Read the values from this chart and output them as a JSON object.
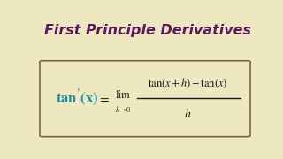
{
  "title": "First Principle Derivatives",
  "title_color": "#5C1A5C",
  "title_fontsize": 11.5,
  "bg_color": "#EDE8C0",
  "box_bg": "#EDE8C0",
  "box_edge_color": "#7A6050",
  "formula_lhs_color": "#1A8C9C",
  "formula_rhs_color": "#1A1A1A",
  "fig_width": 3.2,
  "fig_height": 1.8,
  "dpi": 100
}
